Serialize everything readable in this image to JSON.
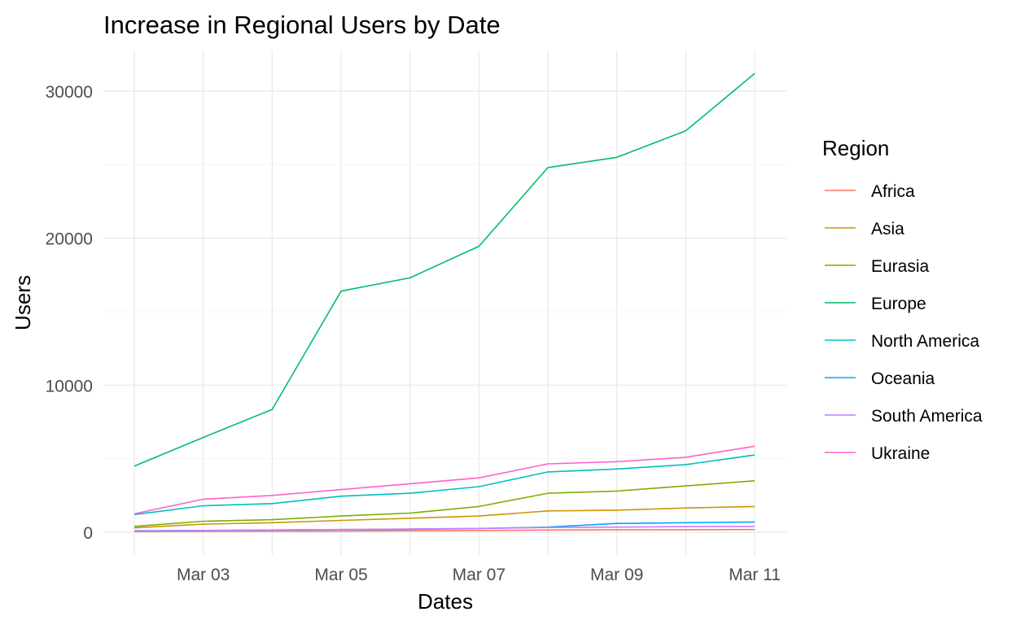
{
  "chart_data": {
    "type": "line",
    "title": "Increase in Regional Users by Date",
    "xlabel": "Dates",
    "ylabel": "Users",
    "legend_title": "Region",
    "legend_position": "right",
    "grid": true,
    "x": [
      "Mar 02",
      "Mar 03",
      "Mar 04",
      "Mar 05",
      "Mar 06",
      "Mar 07",
      "Mar 08",
      "Mar 09",
      "Mar 10",
      "Mar 11"
    ],
    "x_ticks": [
      "Mar 03",
      "Mar 05",
      "Mar 07",
      "Mar 09",
      "Mar 11"
    ],
    "y_ticks": [
      "0",
      "10000",
      "20000",
      "30000"
    ],
    "ylim": [
      -1400,
      32800
    ],
    "series": [
      {
        "name": "Africa",
        "color": "#F8766D",
        "values": [
          40,
          60,
          70,
          80,
          100,
          120,
          150,
          160,
          170,
          180
        ]
      },
      {
        "name": "Asia",
        "color": "#CD9600",
        "values": [
          300,
          550,
          650,
          800,
          950,
          1100,
          1450,
          1500,
          1650,
          1750
        ]
      },
      {
        "name": "Eurasia",
        "color": "#7CAE00",
        "values": [
          400,
          750,
          850,
          1100,
          1300,
          1750,
          2650,
          2800,
          3150,
          3500
        ]
      },
      {
        "name": "Europe",
        "color": "#00BE67",
        "values": [
          4500,
          6450,
          8350,
          16400,
          17300,
          19450,
          24800,
          25500,
          27300,
          31200
        ]
      },
      {
        "name": "North America",
        "color": "#00BFC4",
        "values": [
          1200,
          1800,
          1950,
          2450,
          2650,
          3100,
          4100,
          4300,
          4600,
          5250
        ]
      },
      {
        "name": "Oceania",
        "color": "#00A9FF",
        "values": [
          100,
          120,
          150,
          180,
          200,
          250,
          350,
          600,
          650,
          700
        ]
      },
      {
        "name": "South America",
        "color": "#C77CFF",
        "values": [
          80,
          120,
          150,
          180,
          220,
          260,
          320,
          350,
          380,
          400
        ]
      },
      {
        "name": "Ukraine",
        "color": "#FF61CC",
        "values": [
          1250,
          2250,
          2500,
          2900,
          3300,
          3700,
          4650,
          4800,
          5100,
          5850
        ]
      }
    ]
  }
}
